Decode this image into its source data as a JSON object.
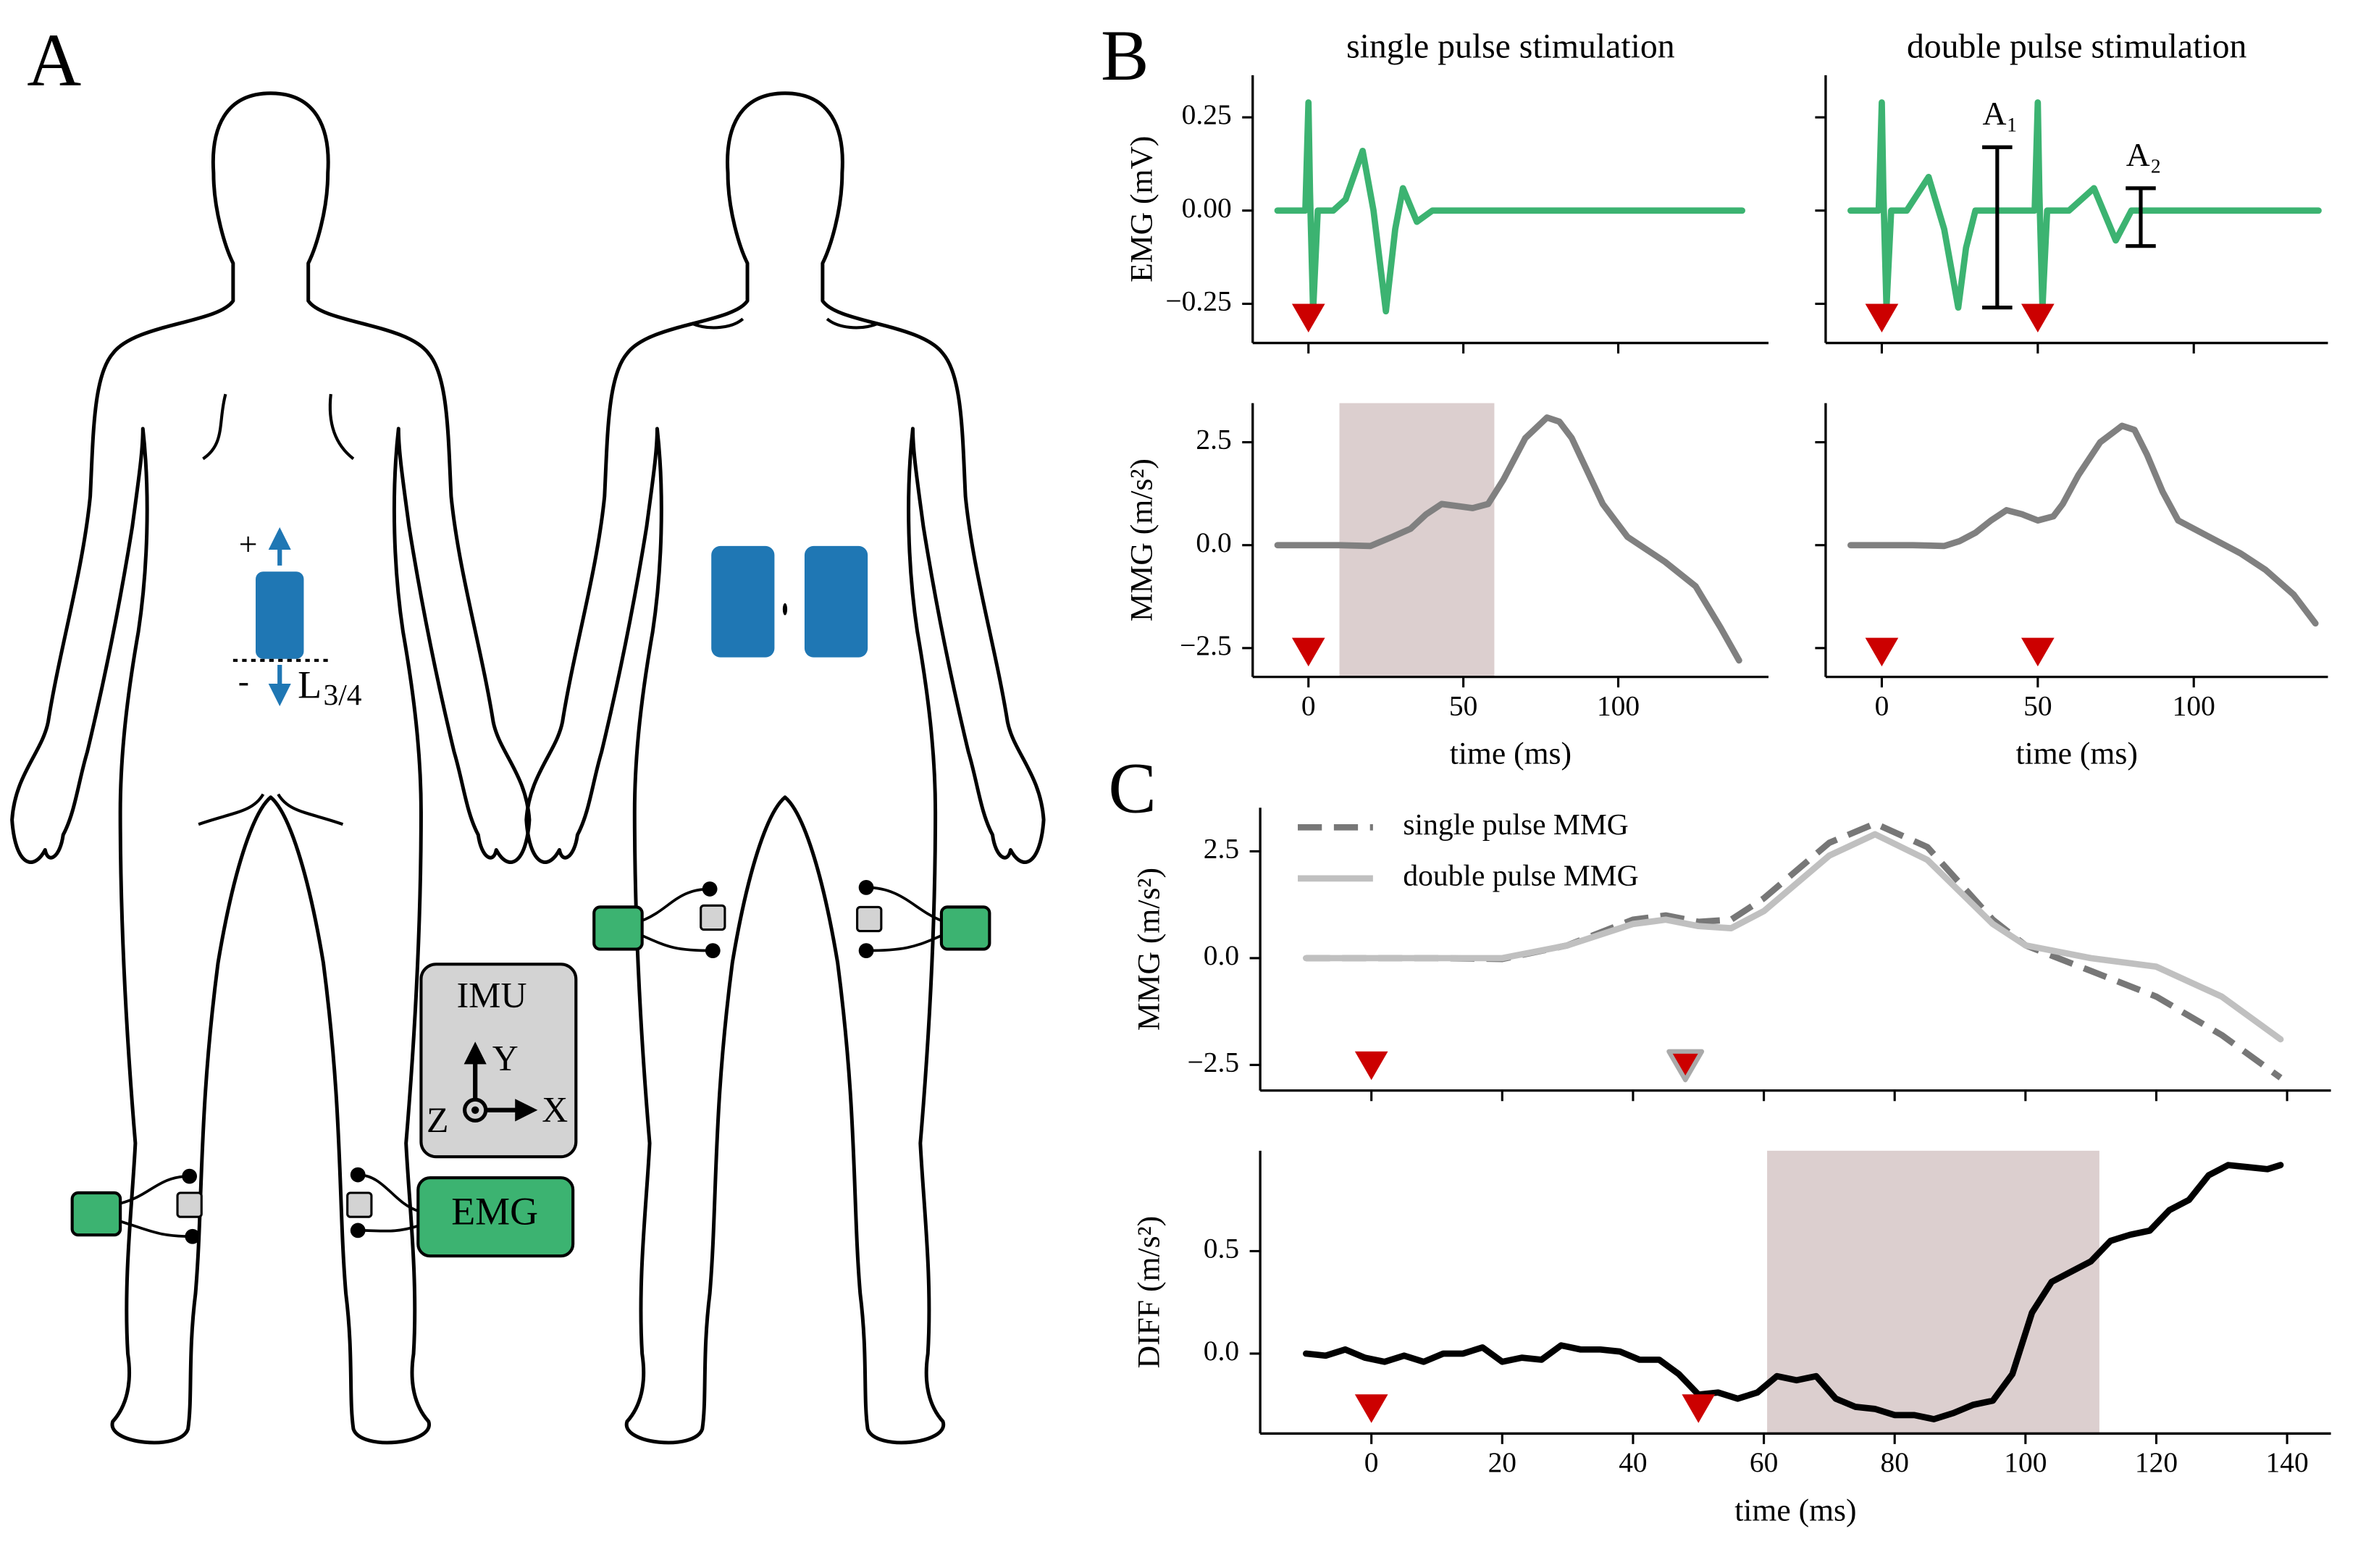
{
  "diagram": {
    "panel_label": "A",
    "imu": "IMU",
    "axes": {
      "x": "X",
      "y": "Y",
      "z": "Z"
    },
    "emg": "EMG",
    "plus": "+",
    "minus": "-",
    "spine_label": "L",
    "spine_sub": "3/4"
  },
  "chart_data": [
    {
      "type": "line",
      "panel_label": "B",
      "title": "single pulse stimulation",
      "y_label": "EMG (mV)",
      "x": [
        -10,
        -1,
        0,
        0.5,
        1.5,
        3,
        8,
        12,
        17.5,
        21,
        25,
        28,
        30.5,
        35,
        40,
        60,
        100,
        140
      ],
      "series": [
        {
          "name": "EMG",
          "color": "#3cb371",
          "values": [
            0,
            0,
            0.29,
            0.05,
            -0.27,
            0,
            0,
            0.03,
            0.16,
            0,
            -0.27,
            -0.05,
            0.06,
            -0.03,
            0,
            0,
            0,
            0
          ]
        }
      ],
      "xlim": [
        -18,
        148.5
      ],
      "ylim": [
        -0.355,
        0.363
      ],
      "xticks": [
        0,
        50,
        100
      ],
      "xtick_labels": false,
      "yticks": [
        {
          "value": 0.25,
          "label": "0.25"
        },
        {
          "value": 0,
          "label": "0.00"
        },
        {
          "value": -0.25,
          "label": "−0.25"
        }
      ],
      "markers": [
        {
          "x": 0,
          "color": "#cc0000"
        }
      ]
    },
    {
      "type": "line",
      "title": "double pulse stimulation",
      "x": [
        -10,
        -1,
        0,
        0.5,
        1.5,
        3,
        8,
        15,
        20,
        24.5,
        27,
        30,
        49,
        50,
        50.5,
        51.5,
        53,
        60,
        68,
        72,
        75,
        80,
        140
      ],
      "series": [
        {
          "name": "EMG",
          "color": "#3cb371",
          "values": [
            0,
            0,
            0.29,
            0.05,
            -0.26,
            0,
            0,
            0.09,
            -0.05,
            -0.26,
            -0.1,
            0,
            0,
            0.29,
            0.05,
            -0.26,
            0,
            0,
            0.06,
            -0.02,
            -0.08,
            0,
            0
          ]
        }
      ],
      "xlim": [
        -18,
        143
      ],
      "ylim": [
        -0.355,
        0.363
      ],
      "xticks": [
        0,
        50,
        100
      ],
      "xtick_labels": false,
      "yticks": [
        0.25,
        0,
        -0.25
      ],
      "ytick_labels": false,
      "markers": [
        {
          "x": 0,
          "color": "#cc0000"
        },
        {
          "x": 50,
          "color": "#cc0000"
        }
      ],
      "annotations": [
        {
          "text": "A₁",
          "x": 37,
          "y": [
            -0.26,
            0.17
          ]
        },
        {
          "text": "A₂",
          "x": 83,
          "y": [
            -0.095,
            0.06
          ]
        }
      ]
    },
    {
      "type": "line",
      "y_label": "MMG (m/s²)",
      "x_label": "time (ms)",
      "x": [
        -10,
        0,
        10,
        20,
        27,
        33,
        38,
        43,
        48,
        53,
        58,
        63,
        70,
        77,
        81,
        85,
        90,
        95,
        103,
        115,
        125,
        133,
        139
      ],
      "series": [
        {
          "name": "MMG",
          "color": "#808080",
          "values": [
            0,
            0,
            0,
            -0.02,
            0.2,
            0.4,
            0.75,
            1.0,
            0.95,
            0.9,
            1.0,
            1.6,
            2.6,
            3.1,
            3.0,
            2.6,
            1.8,
            1.0,
            0.2,
            -0.4,
            -1.0,
            -2.0,
            -2.8
          ]
        }
      ],
      "xlim": [
        -18,
        148.5
      ],
      "ylim": [
        -3.2,
        3.45
      ],
      "xticks": [
        0,
        50,
        100
      ],
      "yticks": [
        2.5,
        {
          "value": 0,
          "label": "0.0"
        },
        {
          "value": -2.5,
          "label": "−2.5"
        }
      ],
      "shade": [
        10,
        60
      ],
      "markers": [
        {
          "x": 0,
          "color": "#cc0000"
        }
      ]
    },
    {
      "type": "line",
      "x_label": "time (ms)",
      "x": [
        -10,
        0,
        10,
        20,
        25,
        30,
        35,
        40,
        45,
        50,
        55,
        58,
        63,
        70,
        77,
        81,
        85,
        90,
        95,
        105,
        115,
        123,
        132,
        139
      ],
      "series": [
        {
          "name": "MMG",
          "color": "#808080",
          "values": [
            0,
            0,
            0,
            -0.02,
            0.1,
            0.3,
            0.6,
            0.85,
            0.75,
            0.6,
            0.7,
            1.0,
            1.7,
            2.5,
            2.9,
            2.8,
            2.2,
            1.3,
            0.6,
            0.2,
            -0.2,
            -0.6,
            -1.2,
            -1.9
          ]
        }
      ],
      "xlim": [
        -18,
        143
      ],
      "ylim": [
        -3.2,
        3.45
      ],
      "xticks": [
        0,
        50,
        100
      ],
      "yticks": [
        2.5,
        0,
        -2.5
      ],
      "ytick_labels": false,
      "markers": [
        {
          "x": 0,
          "color": "#cc0000"
        },
        {
          "x": 50,
          "color": "#cc0000"
        }
      ]
    },
    {
      "type": "line",
      "panel_label": "C",
      "y_label": "MMG (m/s²)",
      "x": [
        -10,
        0,
        10,
        20,
        30,
        40,
        45,
        50,
        55,
        60,
        70,
        77,
        85,
        95,
        100,
        110,
        120,
        130,
        139
      ],
      "series": [
        {
          "name": "single pulse MMG",
          "color": "#777777",
          "dashed": true,
          "values": [
            0,
            0,
            0,
            -0.02,
            0.3,
            0.9,
            1.0,
            0.85,
            0.9,
            1.4,
            2.7,
            3.15,
            2.6,
            0.9,
            0.3,
            -0.3,
            -0.9,
            -1.8,
            -2.8
          ]
        },
        {
          "name": "double pulse MMG",
          "color": "#c0c0c0",
          "values": [
            0,
            0,
            0,
            0,
            0.3,
            0.8,
            0.9,
            0.75,
            0.7,
            1.1,
            2.4,
            2.9,
            2.3,
            0.8,
            0.3,
            0,
            -0.2,
            -0.9,
            -1.9
          ]
        }
      ],
      "xlim": [
        -17,
        146.7
      ],
      "ylim": [
        -3.1,
        3.52
      ],
      "xticks": [
        0,
        20,
        40,
        60,
        80,
        100,
        120,
        140
      ],
      "xtick_labels": false,
      "yticks": [
        2.5,
        {
          "value": 0,
          "label": "0.0"
        },
        {
          "value": -2.5,
          "label": "−2.5"
        }
      ],
      "legend": "upper left",
      "markers": [
        {
          "x": 0,
          "color": "#cc0000"
        },
        {
          "x": 48,
          "color": "#cc0000",
          "edgecolor": "#aaaaaa"
        }
      ]
    },
    {
      "type": "line",
      "y_label": "DIFF (m/s²)",
      "x_label": "time (ms)",
      "x": [
        -10,
        -7,
        -4,
        -1,
        2,
        5,
        8,
        11,
        14,
        17,
        20,
        23,
        26,
        29,
        32,
        35,
        38,
        41,
        44,
        47,
        50,
        53,
        56,
        59,
        62,
        65,
        68,
        71,
        74,
        77,
        80,
        83,
        86,
        89,
        92,
        95,
        98,
        101,
        104,
        107,
        110,
        113,
        116,
        119,
        122,
        125,
        128,
        131,
        134,
        137,
        139
      ],
      "series": [
        {
          "name": "DIFF",
          "color": "#000000",
          "values": [
            0,
            -0.01,
            0.02,
            -0.02,
            -0.04,
            -0.01,
            -0.04,
            0,
            0,
            0.03,
            -0.04,
            -0.02,
            -0.03,
            0.04,
            0.02,
            0.02,
            0.01,
            -0.03,
            -0.03,
            -0.1,
            -0.2,
            -0.19,
            -0.22,
            -0.19,
            -0.11,
            -0.13,
            -0.11,
            -0.22,
            -0.26,
            -0.27,
            -0.3,
            -0.3,
            -0.32,
            -0.29,
            -0.25,
            -0.23,
            -0.1,
            0.2,
            0.35,
            0.4,
            0.45,
            0.55,
            0.58,
            0.6,
            0.7,
            0.75,
            0.87,
            0.92,
            0.91,
            0.9,
            0.92
          ]
        }
      ],
      "xlim": [
        -17,
        146.7
      ],
      "ylim": [
        -0.39,
        0.99
      ],
      "xticks": [
        0,
        20,
        40,
        60,
        80,
        100,
        120,
        140
      ],
      "yticks": [
        0.5,
        {
          "value": 0,
          "label": "0.0"
        }
      ],
      "shade": [
        60.5,
        111.3
      ],
      "markers": [
        {
          "x": 0,
          "color": "#cc0000"
        },
        {
          "x": 50,
          "color": "#cc0000"
        }
      ]
    }
  ]
}
